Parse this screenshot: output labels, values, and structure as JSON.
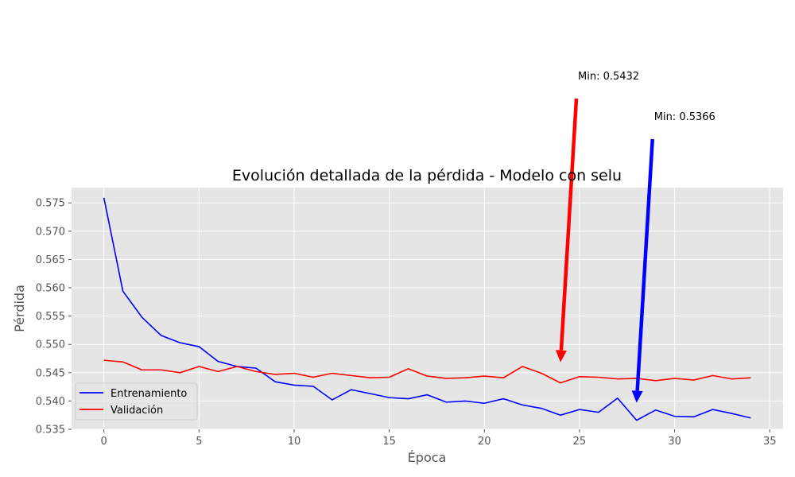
{
  "chart_data": {
    "type": "line",
    "title": "Evolución detallada de la pérdida - Modelo con selu",
    "xlabel": "Época",
    "ylabel": "Pérdida",
    "xlim": [
      -1.7,
      35.7
    ],
    "ylim": [
      0.535,
      0.5777
    ],
    "x_ticks": [
      0,
      5,
      10,
      15,
      20,
      25,
      30,
      35
    ],
    "y_ticks": [
      0.535,
      0.54,
      0.545,
      0.55,
      0.555,
      0.56,
      0.565,
      0.57,
      0.575
    ],
    "y_tick_labels": [
      "0.535",
      "0.540",
      "0.545",
      "0.550",
      "0.555",
      "0.560",
      "0.565",
      "0.570",
      "0.575"
    ],
    "grid": true,
    "legend_position": "lower-left",
    "x": [
      0,
      1,
      2,
      3,
      4,
      5,
      6,
      7,
      8,
      9,
      10,
      11,
      12,
      13,
      14,
      15,
      16,
      17,
      18,
      19,
      20,
      21,
      22,
      23,
      24,
      25,
      26,
      27,
      28,
      29,
      30,
      31,
      32,
      33,
      34
    ],
    "series": [
      {
        "name": "Entrenamiento",
        "color": "#0000ff",
        "values": [
          0.5759,
          0.5594,
          0.5548,
          0.5516,
          0.5503,
          0.5496,
          0.547,
          0.5461,
          0.5458,
          0.5434,
          0.5428,
          0.5426,
          0.5402,
          0.542,
          0.5413,
          0.5406,
          0.5404,
          0.5411,
          0.5398,
          0.54,
          0.5396,
          0.5404,
          0.5393,
          0.5387,
          0.5375,
          0.5385,
          0.538,
          0.5405,
          0.5366,
          0.5384,
          0.5373,
          0.5372,
          0.5385,
          0.5378,
          0.537
        ]
      },
      {
        "name": "Validación",
        "color": "#ff0000",
        "values": [
          0.5472,
          0.5469,
          0.5455,
          0.5455,
          0.545,
          0.5461,
          0.5452,
          0.5461,
          0.5452,
          0.5447,
          0.5449,
          0.5442,
          0.5449,
          0.5445,
          0.5441,
          0.5442,
          0.5457,
          0.5444,
          0.544,
          0.5441,
          0.5444,
          0.5441,
          0.5461,
          0.5449,
          0.5432,
          0.5443,
          0.5442,
          0.5439,
          0.544,
          0.5436,
          0.544,
          0.5437,
          0.5445,
          0.5439,
          0.5441
        ]
      }
    ],
    "annotations": [
      {
        "text": "Min: 0.5432",
        "x": 24,
        "y": 0.5432,
        "color": "#ff0000"
      },
      {
        "text": "Min: 0.5366",
        "x": 28,
        "y": 0.5366,
        "color": "#0000ff"
      }
    ]
  }
}
